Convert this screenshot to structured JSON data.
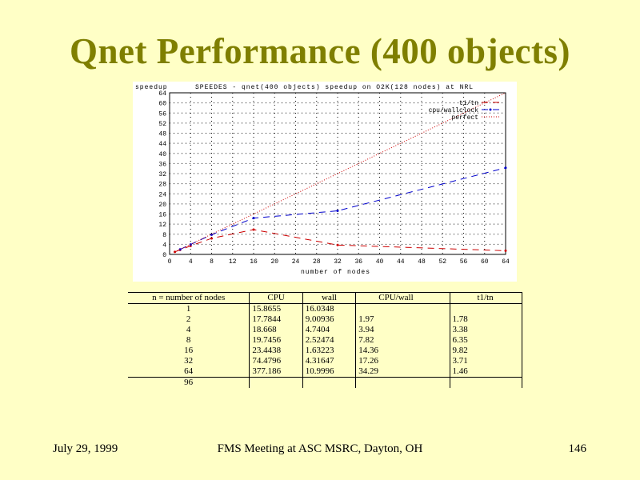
{
  "slide": {
    "title": "Qnet Performance (400 objects)",
    "footer_left": "July 29,  1999",
    "footer_center": "FMS Meeting at ASC MSRC, Dayton, OH",
    "footer_right": "146"
  },
  "colors": {
    "background": "#ffffc6",
    "title": "#7f7f00",
    "t1_tn": "#cc0000",
    "cpu_wallclock": "#0000cc",
    "perfect": "#cc0000"
  },
  "table": {
    "headers": [
      "n = number of nodes",
      "CPU",
      "wall",
      "CPU/wall",
      "t1/tn"
    ],
    "rows": [
      [
        "1",
        "15.8655",
        "16.0348",
        "",
        ""
      ],
      [
        "2",
        "17.7844",
        "9.00936",
        "1.97",
        "1.78"
      ],
      [
        "4",
        "18.668",
        "4.7404",
        "3.94",
        "3.38"
      ],
      [
        "8",
        "19.7456",
        "2.52474",
        "7.82",
        "6.35"
      ],
      [
        "16",
        "23.4438",
        "1.63223",
        "14.36",
        "9.82"
      ],
      [
        "32",
        "74.4796",
        "4.31647",
        "17.26",
        "3.71"
      ],
      [
        "64",
        "377.186",
        "10.9996",
        "34.29",
        "1.46"
      ],
      [
        "96",
        "",
        "",
        "",
        ""
      ]
    ]
  },
  "chart_data": {
    "type": "line",
    "title": "SPEEDES - qnet(400 objects) speedup on O2K(128 nodes) at NRL",
    "ylabel": "speedup",
    "xlabel": "number of nodes",
    "xlim": [
      0,
      64
    ],
    "ylim": [
      0,
      64
    ],
    "xticks": [
      0,
      4,
      8,
      12,
      16,
      20,
      24,
      28,
      32,
      36,
      40,
      44,
      48,
      52,
      56,
      60,
      64
    ],
    "yticks": [
      0,
      4,
      8,
      12,
      16,
      20,
      24,
      28,
      32,
      36,
      40,
      44,
      48,
      52,
      56,
      60,
      64
    ],
    "grid": true,
    "legend_position": "top-right",
    "series": [
      {
        "name": "t1/tn",
        "x": [
          1,
          2,
          4,
          8,
          16,
          32,
          64
        ],
        "y": [
          1,
          1.78,
          3.38,
          6.35,
          9.82,
          3.71,
          1.46
        ],
        "style": "dashed"
      },
      {
        "name": "cpu/wallclock",
        "x": [
          2,
          4,
          8,
          16,
          32,
          64
        ],
        "y": [
          1.97,
          3.94,
          7.82,
          14.36,
          17.26,
          34.29
        ],
        "style": "dashed-points"
      },
      {
        "name": "perfect",
        "x": [
          1,
          64
        ],
        "y": [
          1,
          64
        ],
        "style": "dotted"
      }
    ]
  }
}
